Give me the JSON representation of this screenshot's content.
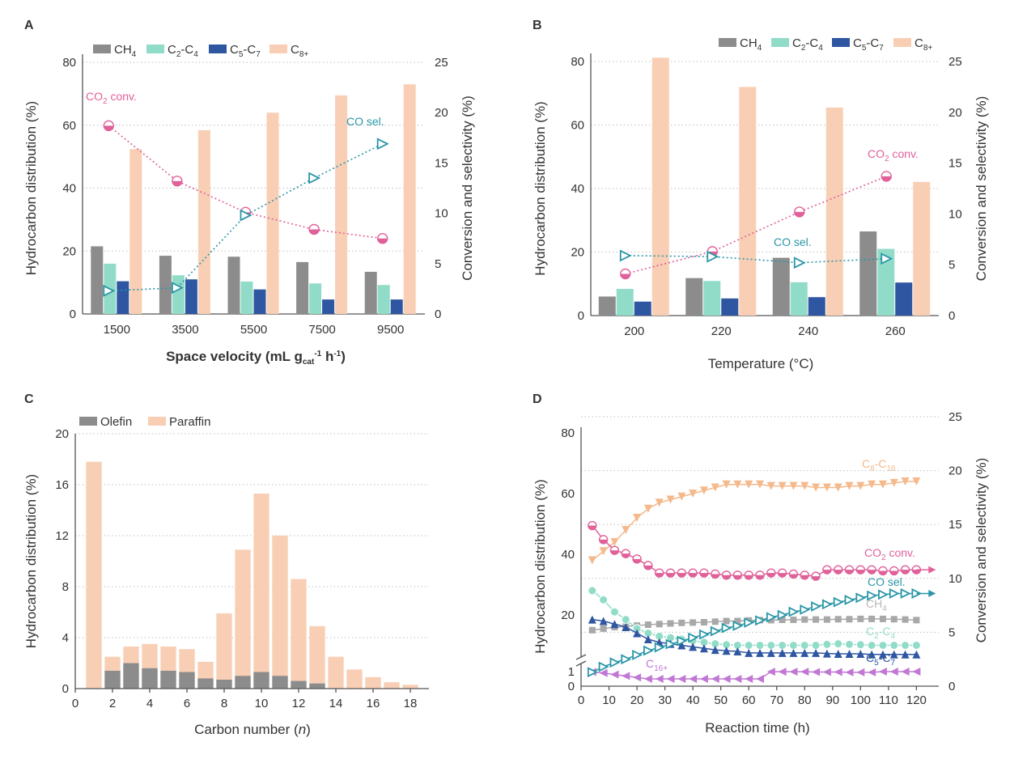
{
  "colors": {
    "ch4": "#8c8c8c",
    "c2c4": "#91dcc8",
    "c5c7": "#2f56a1",
    "c8p": "#f8cfb4",
    "co2conv": "#e0609a",
    "cosel": "#2a96a8",
    "olefin": "#8c8c8c",
    "paraffin": "#f8cfb4",
    "c8c16": "#f4b98c",
    "c16plus": "#c178d4",
    "ch4_d": "#a8a8a8",
    "c2c4_d": "#91dcc8",
    "c5c7_d": "#2f56a1"
  },
  "panels": {
    "A": {
      "label": "A",
      "xlabel": "Space velocity (mL g",
      "xlabel_sub": "cat",
      "xlabel_sup": "-1",
      "xlabel_end": " h",
      "xlabel_sup2": "-1",
      "xlabel_close": ")",
      "ylabel": "Hydrocarbon distribution (%)",
      "y2label": "Conversion and selectivity (%)",
      "legend": [
        "CH4",
        "C2-C4",
        "C5-C7",
        "C8+"
      ],
      "ann_conv": "CO2 conv.",
      "ann_sel": "CO sel."
    },
    "B": {
      "label": "B",
      "xlabel": "Temperature (°C)",
      "ylabel": "Hydrocarbon distribution (%)",
      "y2label": "Conversion and selectivity (%)",
      "legend": [
        "CH4",
        "C2-C4",
        "C5-C7",
        "C8+"
      ],
      "ann_conv": "CO2 conv.",
      "ann_sel": "CO sel."
    },
    "C": {
      "label": "C",
      "xlabel": "Carbon number (n)",
      "ylabel": "Hydrocarbon distribution (%)",
      "legend": [
        "Olefin",
        "Paraffin"
      ]
    },
    "D": {
      "label": "D",
      "xlabel": "Reaction time (h)",
      "ylabel": "Hydrocarbon distribution (%)",
      "y2label": "Conversion and selectivity (%)",
      "ann": [
        "C8-C16",
        "CO2 conv.",
        "CO sel.",
        "CH4",
        "C2-C4",
        "C5-C7",
        "C16+"
      ]
    }
  },
  "chart_data": [
    {
      "panel": "A",
      "type": "bar",
      "categories": [
        "1500",
        "3500",
        "5500",
        "7500",
        "9500"
      ],
      "series": [
        {
          "name": "CH4",
          "values": [
            21.5,
            18.5,
            18.2,
            16.5,
            13.4
          ]
        },
        {
          "name": "C2-C4",
          "values": [
            16.0,
            12.3,
            10.3,
            9.7,
            9.2
          ]
        },
        {
          "name": "C5-C7",
          "values": [
            10.4,
            11.0,
            7.8,
            4.6,
            4.6
          ]
        },
        {
          "name": "C8+",
          "values": [
            52.4,
            58.4,
            64.0,
            69.5,
            73.0
          ]
        }
      ],
      "line_series": [
        {
          "name": "CO2 conv.",
          "axis": "right",
          "values": [
            18.7,
            13.2,
            10.1,
            8.4,
            7.5
          ]
        },
        {
          "name": "CO sel.",
          "axis": "right",
          "values": [
            2.3,
            2.6,
            9.8,
            13.5,
            16.9
          ]
        }
      ],
      "xlabel": "Space velocity (mL gcat-1 h-1)",
      "ylabel": "Hydrocarbon distribution (%)",
      "y2label": "Conversion and selectivity (%)",
      "ylim": [
        0,
        80
      ],
      "yticks": [
        0,
        20,
        40,
        60,
        80
      ],
      "y2lim": [
        0,
        25
      ],
      "y2ticks": [
        0,
        5,
        10,
        15,
        20,
        25
      ],
      "grid": true,
      "legend_position": "top"
    },
    {
      "panel": "B",
      "type": "bar",
      "categories": [
        "200",
        "220",
        "240",
        "260"
      ],
      "series": [
        {
          "name": "CH4",
          "values": [
            6.0,
            11.8,
            18.2,
            26.5
          ]
        },
        {
          "name": "C2-C4",
          "values": [
            8.4,
            10.9,
            10.5,
            21.0
          ]
        },
        {
          "name": "C5-C7",
          "values": [
            4.4,
            5.4,
            5.8,
            10.4
          ]
        },
        {
          "name": "C8+",
          "values": [
            81.2,
            72.0,
            65.5,
            42.1
          ]
        }
      ],
      "line_series": [
        {
          "name": "CO2 conv.",
          "axis": "right",
          "values": [
            4.1,
            6.3,
            10.2,
            13.7
          ]
        },
        {
          "name": "CO sel.",
          "axis": "right",
          "values": [
            5.9,
            5.8,
            5.2,
            5.6
          ]
        }
      ],
      "xlabel": "Temperature (°C)",
      "ylabel": "Hydrocarbon distribution (%)",
      "y2label": "Conversion and selectivity (%)",
      "ylim": [
        0,
        80
      ],
      "yticks": [
        0,
        20,
        40,
        60,
        80
      ],
      "y2lim": [
        0,
        25
      ],
      "y2ticks": [
        0,
        5,
        10,
        15,
        20,
        25
      ],
      "grid": true,
      "legend_position": "top-right"
    },
    {
      "panel": "C",
      "type": "bar",
      "x": [
        1,
        2,
        3,
        4,
        5,
        6,
        7,
        8,
        9,
        10,
        11,
        12,
        13,
        14,
        15,
        16,
        17,
        18
      ],
      "series": [
        {
          "name": "Olefin",
          "values": [
            0,
            1.4,
            2.0,
            1.6,
            1.4,
            1.3,
            0.8,
            0.7,
            1.0,
            1.3,
            1.0,
            0.6,
            0.4,
            0,
            0,
            0,
            0,
            0
          ]
        },
        {
          "name": "Paraffin",
          "values": [
            17.8,
            2.5,
            3.3,
            3.5,
            3.3,
            3.1,
            2.1,
            5.9,
            10.9,
            15.3,
            12.0,
            8.6,
            4.9,
            2.5,
            1.5,
            0.9,
            0.5,
            0.3
          ]
        }
      ],
      "stacked": "overlap",
      "xlabel": "Carbon number (n)",
      "ylabel": "Hydrocarbon distribution (%)",
      "xlim": [
        0,
        19
      ],
      "xticks": [
        0,
        2,
        4,
        6,
        8,
        10,
        12,
        14,
        16,
        18
      ],
      "ylim": [
        0,
        20
      ],
      "yticks": [
        0,
        4,
        8,
        12,
        16,
        20
      ],
      "grid": true,
      "legend_position": "top-left"
    },
    {
      "panel": "D",
      "type": "line",
      "x": [
        4,
        8,
        12,
        16,
        20,
        24,
        28,
        32,
        36,
        40,
        44,
        48,
        52,
        56,
        60,
        64,
        68,
        72,
        76,
        80,
        84,
        88,
        92,
        96,
        100,
        104,
        108,
        112,
        116,
        120
      ],
      "series": [
        {
          "name": "C8-C16",
          "axis": "left",
          "values": [
            38,
            41,
            44,
            48,
            52,
            55,
            57,
            58,
            59,
            60,
            61,
            62,
            63,
            63,
            63,
            63,
            62.5,
            62.5,
            62.5,
            62.5,
            62,
            62,
            62,
            62.5,
            62.5,
            63,
            63,
            63.5,
            64,
            64
          ]
        },
        {
          "name": "CH4",
          "axis": "left",
          "values": [
            15,
            15.5,
            16,
            16.2,
            16.5,
            16.8,
            17,
            17.2,
            17.4,
            17.5,
            17.6,
            17.8,
            18,
            18,
            18.2,
            18.3,
            18.3,
            18.4,
            18.4,
            18.5,
            18.5,
            18.5,
            18.6,
            18.6,
            18.7,
            18.7,
            18.7,
            18.6,
            18.5,
            18.3
          ]
        },
        {
          "name": "C2-C4",
          "axis": "left",
          "values": [
            28,
            25,
            21,
            18.5,
            15.5,
            14,
            13,
            12.5,
            12,
            11.5,
            11,
            10.5,
            10.2,
            10,
            10,
            10,
            10,
            10,
            10,
            10,
            10,
            10.3,
            10.5,
            10.3,
            10.2,
            10,
            10,
            10,
            10,
            10
          ]
        },
        {
          "name": "C5-C7",
          "axis": "left",
          "values": [
            18.5,
            18,
            17,
            16,
            14,
            12,
            11,
            10.5,
            10,
            9.5,
            9,
            8.5,
            8.2,
            8,
            7.5,
            7.5,
            7.5,
            7.5,
            7.5,
            7.5,
            7.5,
            7.3,
            7.2,
            7.2,
            7.2,
            7,
            7,
            7,
            7,
            7
          ]
        },
        {
          "name": "C16+",
          "axis": "left",
          "values": [
            1.2,
            0.9,
            0.8,
            0.7,
            0.6,
            0.5,
            0.5,
            0.5,
            0.5,
            0.5,
            0.5,
            0.5,
            0.5,
            0.5,
            0.5,
            0.5,
            1.3,
            1.3,
            1.3,
            1.3,
            1.2,
            1.2,
            1.2,
            1.1,
            1.1,
            1.1,
            1.0,
            1.0,
            1.0,
            1.0
          ]
        },
        {
          "name": "CO2 conv.",
          "axis": "right",
          "values": [
            14.9,
            13.6,
            12.6,
            12.3,
            11.8,
            11.2,
            10.5,
            10.5,
            10.5,
            10.5,
            10.5,
            10.4,
            10.3,
            10.3,
            10.3,
            10.3,
            10.5,
            10.5,
            10.4,
            10.3,
            10.2,
            10.8,
            10.8,
            10.8,
            10.8,
            10.8,
            10.7,
            10.7,
            10.8,
            10.8
          ]
        },
        {
          "name": "CO sel.",
          "axis": "right",
          "values": [
            1.3,
            1.8,
            2.2,
            2.5,
            2.9,
            3.3,
            3.6,
            3.9,
            4.2,
            4.5,
            4.8,
            5.1,
            5.4,
            5.6,
            5.9,
            6.1,
            6.4,
            6.6,
            6.9,
            7.1,
            7.4,
            7.6,
            7.8,
            8.0,
            8.2,
            8.4,
            8.5,
            8.6,
            8.6,
            8.6
          ]
        }
      ],
      "xlabel": "Reaction time (h)",
      "ylabel": "Hydrocarbon distribution (%)",
      "y2label": "Conversion and selectivity (%)",
      "xlim": [
        0,
        128
      ],
      "xticks": [
        0,
        10,
        20,
        30,
        40,
        50,
        60,
        70,
        80,
        90,
        100,
        110,
        120
      ],
      "yticks": [
        0,
        1,
        20,
        40,
        60,
        80
      ],
      "y_axis_break": true,
      "y2lim": [
        0,
        25
      ],
      "y2ticks": [
        0,
        5,
        10,
        15,
        20,
        25
      ],
      "grid": true
    }
  ]
}
